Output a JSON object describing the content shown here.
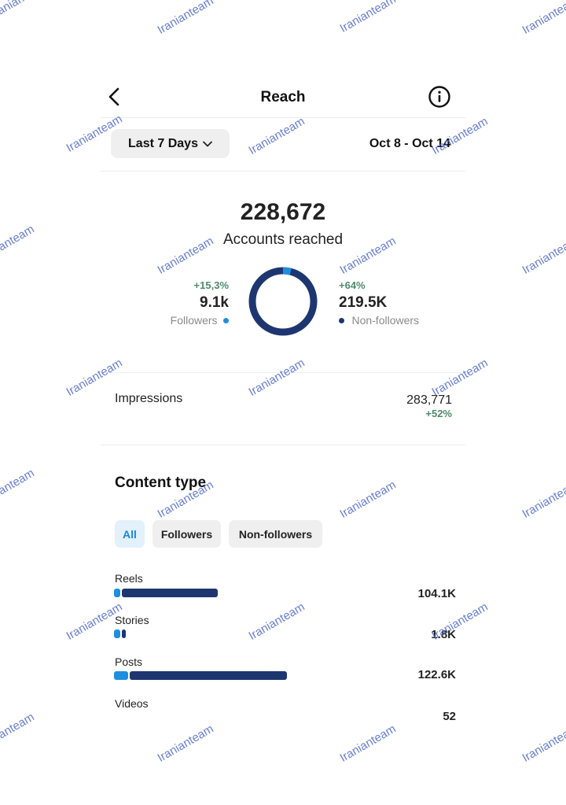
{
  "header": {
    "title": "Reach"
  },
  "filter": {
    "range_label": "Last 7 Days",
    "date_range": "Oct 8 - Oct 14"
  },
  "summary": {
    "total": "228,672",
    "total_label": "Accounts reached",
    "followers": {
      "change": "+15,3%",
      "value": "9.1k",
      "label": "Followers"
    },
    "non_followers": {
      "change": "+64%",
      "value": "219.5K",
      "label": "Non-followers"
    },
    "donut": {
      "follower_share": 0.04,
      "colors": {
        "followers": "#1e8fdf",
        "non_followers": "#1e3670"
      }
    }
  },
  "impressions": {
    "label": "Impressions",
    "value": "283,771",
    "change": "+52%"
  },
  "content_type": {
    "title": "Content type",
    "tabs": [
      {
        "label": "All",
        "active": true
      },
      {
        "label": "Followers",
        "active": false
      },
      {
        "label": "Non-followers",
        "active": false
      }
    ],
    "rows": [
      {
        "label": "Reels",
        "value": "104.1K",
        "follower_fraction": 0.02,
        "nonfollower_fraction": 0.55
      },
      {
        "label": "Stories",
        "value": "1.8K",
        "follower_fraction": 0.01,
        "nonfollower_fraction": 0.02
      },
      {
        "label": "Posts",
        "value": "122.6K",
        "follower_fraction": 0.08,
        "nonfollower_fraction": 0.9
      },
      {
        "label": "Videos",
        "value": "52",
        "follower_fraction": 0,
        "nonfollower_fraction": 0
      }
    ]
  },
  "watermark": "Iranianteam",
  "colors": {
    "accent": "#1b87d9",
    "positive": "#4f8a6c",
    "dark_bar": "#1e3670",
    "light_bar": "#1e8fdf"
  }
}
